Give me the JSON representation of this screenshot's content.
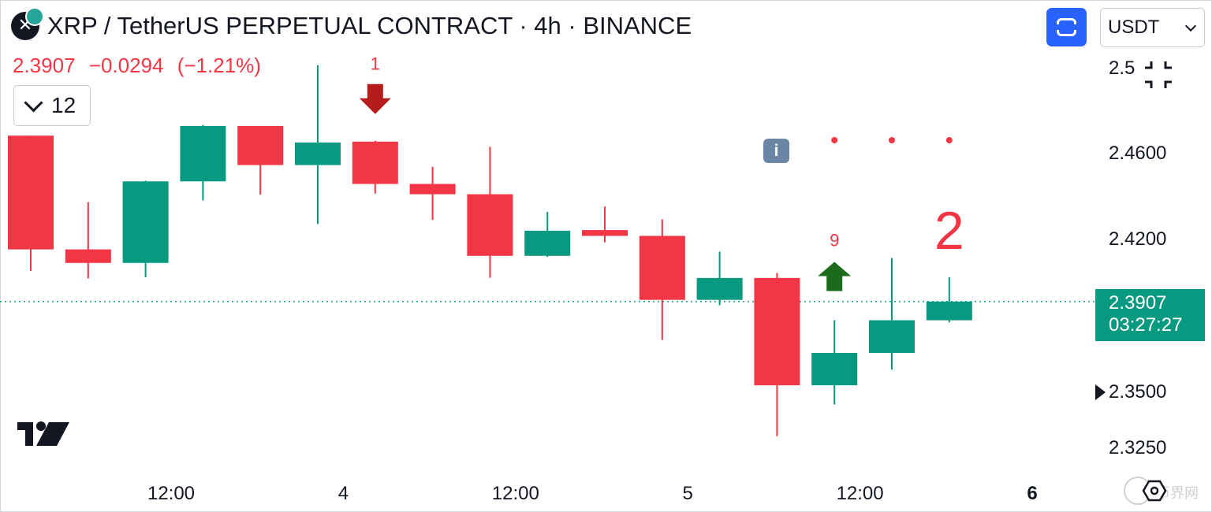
{
  "header": {
    "title": "XRP / TetherUS PERPETUAL CONTRACT · 4h · BINANCE",
    "last_price": "2.3907",
    "change": "−0.0294",
    "change_pct": "(−1.21%)",
    "indicators_count": "12",
    "currency": "USDT"
  },
  "price_label": {
    "price": "2.3907",
    "countdown": "03:27:27"
  },
  "colors": {
    "up": "#089981",
    "down": "#f23645",
    "arrow_down": "#b71c1c",
    "arrow_up": "#1b6b1b"
  },
  "icons": [
    "collapse-chevron-icon",
    "fullscreen-toggle-icon",
    "info-icon",
    "fullscreen-icon",
    "tradingview-logo",
    "settings-hex-icon"
  ],
  "watermark": "币界网",
  "chart_data": {
    "type": "candlestick",
    "interval": "4h",
    "y_ticks": [
      "2.5",
      "2.4600",
      "2.4200",
      "2.3500",
      "2.3250"
    ],
    "x_ticks": [
      {
        "label": "12:00",
        "index": 2.5
      },
      {
        "label": "4",
        "index": 5.5,
        "bold": false
      },
      {
        "label": "12:00",
        "index": 8.5
      },
      {
        "label": "5",
        "index": 11.5
      },
      {
        "label": "12:00",
        "index": 14.5
      },
      {
        "label": "6",
        "index": 17.5,
        "bold": true
      }
    ],
    "candles": [
      {
        "o": 2.468,
        "h": 2.468,
        "c": 2.415,
        "l": 2.405
      },
      {
        "o": 2.415,
        "h": 2.437,
        "c": 2.4087,
        "l": 2.4015
      },
      {
        "o": 2.4087,
        "h": 2.447,
        "c": 2.4467,
        "l": 2.402
      },
      {
        "o": 2.4467,
        "h": 2.473,
        "c": 2.4725,
        "l": 2.4378
      },
      {
        "o": 2.4725,
        "h": 2.4725,
        "c": 2.4543,
        "l": 2.4405
      },
      {
        "o": 2.4543,
        "h": 2.5008,
        "c": 2.4648,
        "l": 2.4268
      },
      {
        "o": 2.4652,
        "h": 2.4656,
        "c": 2.4455,
        "l": 2.441
      },
      {
        "o": 2.4455,
        "h": 2.4535,
        "c": 2.4407,
        "l": 2.4288
      },
      {
        "o": 2.4407,
        "h": 2.4628,
        "c": 2.412,
        "l": 2.4018
      },
      {
        "o": 2.412,
        "h": 2.4325,
        "c": 2.4237,
        "l": 2.4115
      },
      {
        "o": 2.424,
        "h": 2.435,
        "c": 2.4213,
        "l": 2.4183
      },
      {
        "o": 2.4213,
        "h": 2.429,
        "c": 2.3915,
        "l": 2.3728
      },
      {
        "o": 2.3915,
        "h": 2.414,
        "c": 2.4017,
        "l": 2.389
      },
      {
        "o": 2.4017,
        "h": 2.404,
        "c": 2.3517,
        "l": 2.328
      },
      {
        "o": 2.3517,
        "h": 2.382,
        "c": 2.3668,
        "l": 2.3428
      },
      {
        "o": 2.3668,
        "h": 2.411,
        "c": 2.382,
        "l": 2.359
      },
      {
        "o": 2.382,
        "h": 2.402,
        "c": 2.3907,
        "l": 2.381
      }
    ],
    "annotations": [
      {
        "type": "down-arrow",
        "index": 6,
        "label": "1"
      },
      {
        "type": "up-arrow",
        "index": 14,
        "label": "9"
      },
      {
        "type": "text",
        "index": 16,
        "label": "2"
      },
      {
        "type": "info",
        "index": 13
      },
      {
        "type": "dots",
        "indices": [
          14,
          15,
          16
        ]
      }
    ],
    "current_price": 2.3907
  }
}
